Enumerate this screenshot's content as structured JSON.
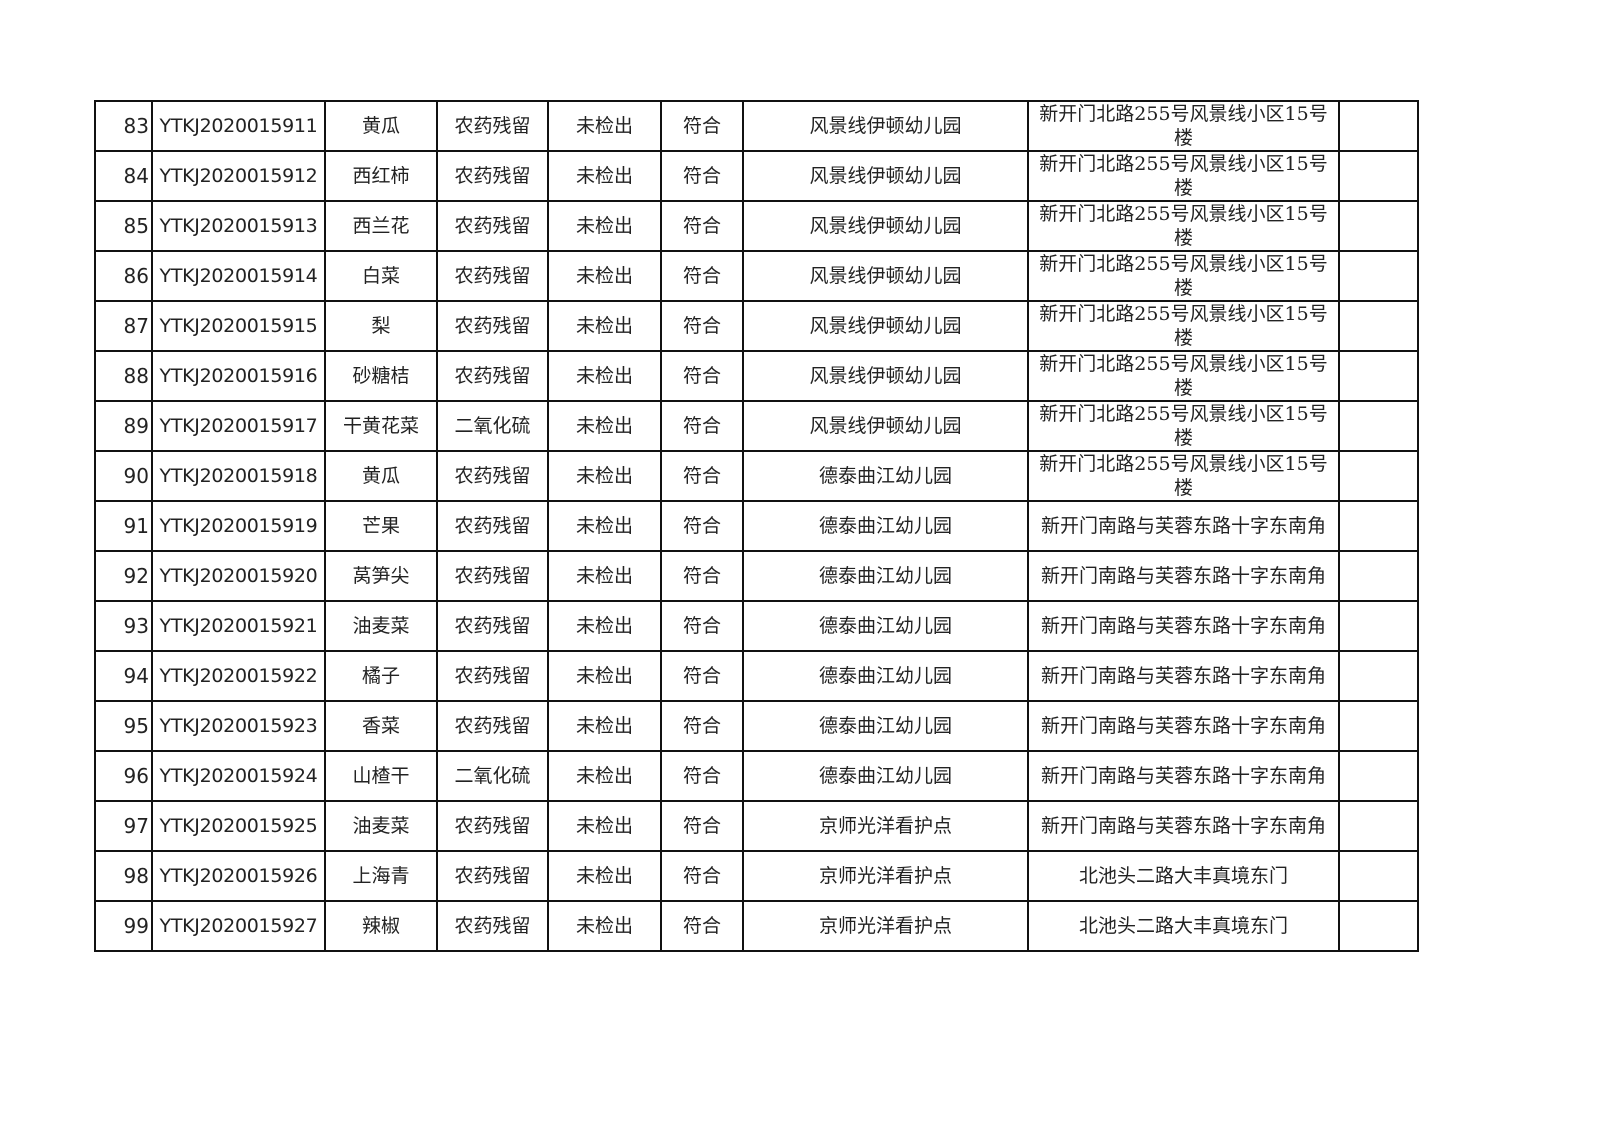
{
  "rows": [
    {
      "no": "83",
      "code": "YTKJ2020015911",
      "sample": "黄瓜",
      "item": "农药残留",
      "result": "未检出",
      "judgement": "符合",
      "unit": "风景线伊顿幼儿园",
      "address": "新开门北路255号风景线小区15号楼",
      "note": ""
    },
    {
      "no": "84",
      "code": "YTKJ2020015912",
      "sample": "西红柿",
      "item": "农药残留",
      "result": "未检出",
      "judgement": "符合",
      "unit": "风景线伊顿幼儿园",
      "address": "新开门北路255号风景线小区15号楼",
      "note": ""
    },
    {
      "no": "85",
      "code": "YTKJ2020015913",
      "sample": "西兰花",
      "item": "农药残留",
      "result": "未检出",
      "judgement": "符合",
      "unit": "风景线伊顿幼儿园",
      "address": "新开门北路255号风景线小区15号楼",
      "note": ""
    },
    {
      "no": "86",
      "code": "YTKJ2020015914",
      "sample": "白菜",
      "item": "农药残留",
      "result": "未检出",
      "judgement": "符合",
      "unit": "风景线伊顿幼儿园",
      "address": "新开门北路255号风景线小区15号楼",
      "note": ""
    },
    {
      "no": "87",
      "code": "YTKJ2020015915",
      "sample": "梨",
      "item": "农药残留",
      "result": "未检出",
      "judgement": "符合",
      "unit": "风景线伊顿幼儿园",
      "address": "新开门北路255号风景线小区15号楼",
      "note": ""
    },
    {
      "no": "88",
      "code": "YTKJ2020015916",
      "sample": "砂糖桔",
      "item": "农药残留",
      "result": "未检出",
      "judgement": "符合",
      "unit": "风景线伊顿幼儿园",
      "address": "新开门北路255号风景线小区15号楼",
      "note": ""
    },
    {
      "no": "89",
      "code": "YTKJ2020015917",
      "sample": "干黄花菜",
      "item": "二氧化硫",
      "result": "未检出",
      "judgement": "符合",
      "unit": "风景线伊顿幼儿园",
      "address": "新开门北路255号风景线小区15号楼",
      "note": ""
    },
    {
      "no": "90",
      "code": "YTKJ2020015918",
      "sample": "黄瓜",
      "item": "农药残留",
      "result": "未检出",
      "judgement": "符合",
      "unit": "德泰曲江幼儿园",
      "address": "新开门北路255号风景线小区15号楼",
      "note": ""
    },
    {
      "no": "91",
      "code": "YTKJ2020015919",
      "sample": "芒果",
      "item": "农药残留",
      "result": "未检出",
      "judgement": "符合",
      "unit": "德泰曲江幼儿园",
      "address": "新开门南路与芙蓉东路十字东南角",
      "note": ""
    },
    {
      "no": "92",
      "code": "YTKJ2020015920",
      "sample": "莴笋尖",
      "item": "农药残留",
      "result": "未检出",
      "judgement": "符合",
      "unit": "德泰曲江幼儿园",
      "address": "新开门南路与芙蓉东路十字东南角",
      "note": ""
    },
    {
      "no": "93",
      "code": "YTKJ2020015921",
      "sample": "油麦菜",
      "item": "农药残留",
      "result": "未检出",
      "judgement": "符合",
      "unit": "德泰曲江幼儿园",
      "address": "新开门南路与芙蓉东路十字东南角",
      "note": ""
    },
    {
      "no": "94",
      "code": "YTKJ2020015922",
      "sample": "橘子",
      "item": "农药残留",
      "result": "未检出",
      "judgement": "符合",
      "unit": "德泰曲江幼儿园",
      "address": "新开门南路与芙蓉东路十字东南角",
      "note": ""
    },
    {
      "no": "95",
      "code": "YTKJ2020015923",
      "sample": "香菜",
      "item": "农药残留",
      "result": "未检出",
      "judgement": "符合",
      "unit": "德泰曲江幼儿园",
      "address": "新开门南路与芙蓉东路十字东南角",
      "note": ""
    },
    {
      "no": "96",
      "code": "YTKJ2020015924",
      "sample": "山楂干",
      "item": "二氧化硫",
      "result": "未检出",
      "judgement": "符合",
      "unit": "德泰曲江幼儿园",
      "address": "新开门南路与芙蓉东路十字东南角",
      "note": ""
    },
    {
      "no": "97",
      "code": "YTKJ2020015925",
      "sample": "油麦菜",
      "item": "农药残留",
      "result": "未检出",
      "judgement": "符合",
      "unit": "京师光洋看护点",
      "address": "新开门南路与芙蓉东路十字东南角",
      "note": ""
    },
    {
      "no": "98",
      "code": "YTKJ2020015926",
      "sample": "上海青",
      "item": "农药残留",
      "result": "未检出",
      "judgement": "符合",
      "unit": "京师光洋看护点",
      "address": "北池头二路大丰真境东门",
      "note": ""
    },
    {
      "no": "99",
      "code": "YTKJ2020015927",
      "sample": "辣椒",
      "item": "农药残留",
      "result": "未检出",
      "judgement": "符合",
      "unit": "京师光洋看护点",
      "address": "北池头二路大丰真境东门",
      "note": ""
    }
  ]
}
